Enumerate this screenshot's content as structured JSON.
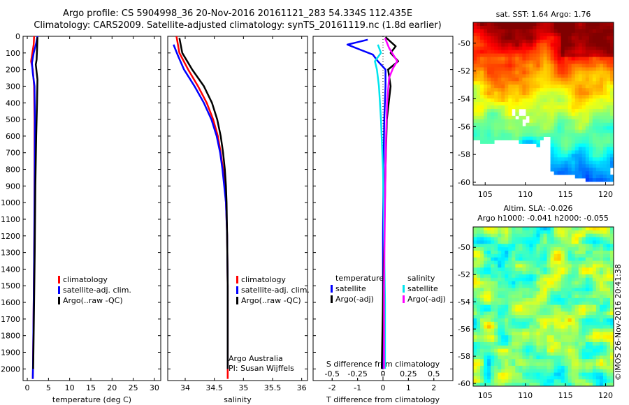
{
  "title": {
    "line1": "Argo profile: CS 5904998_36 20-Nov-2016 20161121_283 54.334S 112.435E",
    "line2": "Climatology: CARS2009. Satellite-adjusted climatology: synTS_20161119.nc (1.8d earlier)"
  },
  "stamp": "©IMOS 26-Nov-2016 20:41:38",
  "colors": {
    "climatology": "#ff0000",
    "satellite": "#0000ff",
    "argo": "#000000",
    "sat_salinity": "#00e5ee",
    "argo_salinity": "#ff00ff"
  },
  "chart_data": [
    {
      "type": "line",
      "id": "temperature",
      "xlabel": "temperature (deg C)",
      "ylabel": "",
      "xlim": [
        -1,
        31.5
      ],
      "ylim": [
        2070,
        0
      ],
      "xticks": [
        0,
        5,
        10,
        15,
        20,
        25,
        30
      ],
      "yticks": [
        0,
        100,
        200,
        300,
        400,
        500,
        600,
        700,
        800,
        900,
        1000,
        1100,
        1200,
        1300,
        1400,
        1500,
        1600,
        1700,
        1800,
        1900,
        2000
      ],
      "legend": [
        "climatology",
        "satellite-adj. clim.",
        "Argo(..raw -QC)"
      ],
      "series": [
        {
          "name": "climatology",
          "color": "#ff0000",
          "width": 2.5,
          "points": [
            [
              1.6,
              0
            ],
            [
              1.5,
              50
            ],
            [
              1.2,
              100
            ],
            [
              0.9,
              150
            ],
            [
              1.3,
              200
            ],
            [
              1.6,
              300
            ],
            [
              1.7,
              500
            ],
            [
              1.7,
              800
            ],
            [
              1.65,
              1200
            ],
            [
              1.5,
              1600
            ],
            [
              1.35,
              2000
            ],
            [
              1.3,
              2060
            ]
          ]
        },
        {
          "name": "satellite-adj. clim.",
          "color": "#0000ff",
          "width": 2.5,
          "points": [
            [
              2.4,
              0
            ],
            [
              2.1,
              40
            ],
            [
              1.5,
              100
            ],
            [
              1.1,
              160
            ],
            [
              1.3,
              220
            ],
            [
              1.7,
              300
            ],
            [
              1.8,
              500
            ],
            [
              1.75,
              800
            ],
            [
              1.65,
              1200
            ],
            [
              1.5,
              1600
            ],
            [
              1.35,
              2000
            ],
            [
              1.3,
              2060
            ]
          ]
        },
        {
          "name": "Argo(..raw -QC)",
          "color": "#000000",
          "width": 2.5,
          "points": [
            [
              2.4,
              5
            ],
            [
              2.3,
              80
            ],
            [
              2.2,
              140
            ],
            [
              2.0,
              170
            ],
            [
              2.4,
              260
            ],
            [
              2.3,
              400
            ],
            [
              2.1,
              600
            ],
            [
              1.9,
              900
            ],
            [
              1.75,
              1300
            ],
            [
              1.6,
              1600
            ],
            [
              1.4,
              2000
            ]
          ]
        }
      ]
    },
    {
      "type": "line",
      "id": "salinity",
      "xlabel": "salinity",
      "ylabel": "",
      "xlim": [
        33.7,
        36.1
      ],
      "ylim": [
        2070,
        0
      ],
      "xticks": [
        34,
        34.5,
        35,
        35.5,
        36
      ],
      "legend": [
        "climatology",
        "satellite-adj. clim.",
        "Argo(..raw -QC)"
      ],
      "annotation": [
        "Argo Australia",
        "PI: Susan Wijffels"
      ],
      "series": [
        {
          "name": "climatology",
          "color": "#ff0000",
          "width": 2.5,
          "points": [
            [
              33.85,
              0
            ],
            [
              33.9,
              100
            ],
            [
              34.05,
              200
            ],
            [
              34.22,
              300
            ],
            [
              34.37,
              400
            ],
            [
              34.48,
              500
            ],
            [
              34.56,
              600
            ],
            [
              34.61,
              700
            ],
            [
              34.65,
              800
            ],
            [
              34.68,
              900
            ],
            [
              34.7,
              1000
            ],
            [
              34.72,
              1200
            ],
            [
              34.73,
              1500
            ],
            [
              34.73,
              1800
            ],
            [
              34.73,
              2060
            ]
          ]
        },
        {
          "name": "satellite-adj. clim.",
          "color": "#0000ff",
          "width": 2.5,
          "points": [
            [
              33.8,
              50
            ],
            [
              33.88,
              120
            ],
            [
              33.98,
              200
            ],
            [
              34.16,
              300
            ],
            [
              34.32,
              400
            ],
            [
              34.45,
              500
            ],
            [
              34.54,
              600
            ],
            [
              34.6,
              700
            ],
            [
              34.64,
              800
            ],
            [
              34.67,
              900
            ],
            [
              34.7,
              1000
            ],
            [
              34.72,
              1200
            ],
            [
              34.73,
              1500
            ],
            [
              34.73,
              1800
            ],
            [
              34.73,
              2000
            ]
          ]
        },
        {
          "name": "Argo(..raw -QC)",
          "color": "#000000",
          "width": 2.5,
          "points": [
            [
              33.9,
              10
            ],
            [
              33.95,
              100
            ],
            [
              34.12,
              200
            ],
            [
              34.32,
              300
            ],
            [
              34.46,
              400
            ],
            [
              34.55,
              500
            ],
            [
              34.61,
              600
            ],
            [
              34.65,
              700
            ],
            [
              34.68,
              800
            ],
            [
              34.7,
              900
            ],
            [
              34.71,
              1000
            ],
            [
              34.72,
              1200
            ],
            [
              34.73,
              1500
            ],
            [
              34.73,
              1800
            ],
            [
              34.73,
              2000
            ]
          ]
        }
      ]
    },
    {
      "type": "line",
      "id": "difference",
      "xlabel": "T difference from climatology",
      "x2label": "S difference from climatology",
      "ylabel": "",
      "xlim": [
        -2.75,
        2.75
      ],
      "x2lim": [
        -0.6875,
        0.6875
      ],
      "ylim": [
        2070,
        0
      ],
      "xticks": [
        -2,
        -1,
        0,
        1,
        2
      ],
      "x2ticks": [
        -0.5,
        -0.25,
        0,
        0.25,
        0.5
      ],
      "x2ticklabels": [
        "-0.5",
        "-0.25",
        "0",
        "0.25",
        "0.5"
      ],
      "legend_headers": [
        "temperature",
        "salinity"
      ],
      "legend": [
        "satellite",
        "Argo(-adj)",
        "satellite",
        "Argo(-adj)"
      ],
      "series": [
        {
          "name": "temperature satellite",
          "axis": "T",
          "color": "#0000ff",
          "width": 2.5,
          "points": [
            [
              -0.6,
              20
            ],
            [
              -1.4,
              50
            ],
            [
              -0.9,
              80
            ],
            [
              -0.4,
              110
            ],
            [
              -0.2,
              150
            ],
            [
              0.1,
              200
            ],
            [
              0.1,
              300
            ],
            [
              0.05,
              500
            ],
            [
              0.02,
              800
            ],
            [
              0,
              1200
            ],
            [
              0,
              1600
            ],
            [
              0,
              2000
            ]
          ]
        },
        {
          "name": "temperature Argo(-adj)",
          "color": "#000000",
          "axis": "T",
          "width": 2.5,
          "points": [
            [
              0.1,
              5
            ],
            [
              0.5,
              60
            ],
            [
              0.3,
              100
            ],
            [
              0.6,
              150
            ],
            [
              0.2,
              200
            ],
            [
              0.3,
              300
            ],
            [
              0.15,
              500
            ],
            [
              0.1,
              800
            ],
            [
              0.05,
              1200
            ],
            [
              0,
              1600
            ],
            [
              -0.05,
              2000
            ]
          ]
        },
        {
          "name": "salinity satellite",
          "color": "#00e5ee",
          "axis": "S",
          "width": 2.5,
          "points": [
            [
              -0.05,
              50
            ],
            [
              -0.02,
              100
            ],
            [
              -0.08,
              150
            ],
            [
              -0.06,
              200
            ],
            [
              -0.04,
              300
            ],
            [
              -0.02,
              500
            ],
            [
              0,
              800
            ],
            [
              0.01,
              1200
            ],
            [
              0.02,
              1600
            ],
            [
              0.02,
              2000
            ]
          ]
        },
        {
          "name": "salinity Argo(-adj)",
          "color": "#ff00ff",
          "axis": "S",
          "width": 2.5,
          "points": [
            [
              0.02,
              10
            ],
            [
              0.06,
              70
            ],
            [
              0.1,
              110
            ],
            [
              0.14,
              150
            ],
            [
              0.1,
              190
            ],
            [
              0.06,
              250
            ],
            [
              0.04,
              400
            ],
            [
              0.03,
              600
            ],
            [
              0.02,
              1000
            ],
            [
              0.01,
              1500
            ],
            [
              0.01,
              2000
            ]
          ]
        }
      ]
    },
    {
      "type": "heatmap",
      "id": "sst_map",
      "title": "sat. SST: 1.64  Argo: 1.76",
      "xlim": [
        103.5,
        121
      ],
      "ylim": [
        -60.2,
        -48.5
      ],
      "xticks": [
        105,
        110,
        115,
        120
      ],
      "yticks": [
        -50,
        -52,
        -54,
        -56,
        -58,
        -60
      ]
    },
    {
      "type": "heatmap",
      "id": "sla_map",
      "title": [
        "Altim. SLA: -0.026",
        "Argo h1000: -0.041 h2000: -0.055"
      ],
      "xlim": [
        103.5,
        121
      ],
      "ylim": [
        -60.2,
        -48.5
      ],
      "xticks": [
        105,
        110,
        115,
        120
      ],
      "yticks": [
        -50,
        -52,
        -54,
        -56,
        -58,
        -60
      ]
    }
  ]
}
